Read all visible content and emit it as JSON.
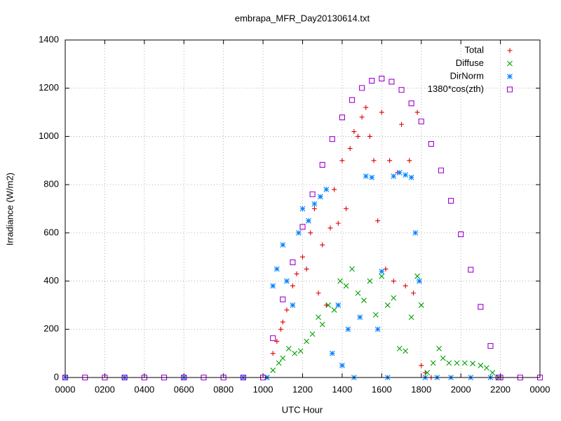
{
  "chart_data": {
    "type": "scatter",
    "title": "embrapa_MFR_Day20130614.txt",
    "x_label": "UTC Hour",
    "y_label": "Irradiance (W/m2)",
    "xlim": [
      0,
      24
    ],
    "ylim": [
      0,
      1400
    ],
    "xticks": [
      {
        "value": 0,
        "label": "0000"
      },
      {
        "value": 2,
        "label": "0200"
      },
      {
        "value": 4,
        "label": "0400"
      },
      {
        "value": 6,
        "label": "0600"
      },
      {
        "value": 8,
        "label": "0800"
      },
      {
        "value": 10,
        "label": "1000"
      },
      {
        "value": 12,
        "label": "1200"
      },
      {
        "value": 14,
        "label": "1400"
      },
      {
        "value": 16,
        "label": "1600"
      },
      {
        "value": 18,
        "label": "1800"
      },
      {
        "value": 20,
        "label": "2000"
      },
      {
        "value": 22,
        "label": "2200"
      },
      {
        "value": 24,
        "label": "0000"
      }
    ],
    "yticks": [
      0,
      200,
      400,
      600,
      800,
      1000,
      1200,
      1400
    ],
    "grid": true,
    "legend": "top-right",
    "series": [
      {
        "name": "Total",
        "color": "#e00000",
        "marker": "plus",
        "x": [
          10.5,
          10.7,
          10.9,
          11.0,
          11.2,
          11.5,
          11.7,
          12.0,
          12.2,
          12.4,
          12.6,
          12.8,
          13.0,
          13.2,
          13.4,
          13.6,
          13.8,
          14.0,
          14.2,
          14.4,
          14.6,
          14.8,
          15.0,
          15.2,
          15.4,
          15.6,
          15.8,
          16.0,
          16.2,
          16.4,
          16.6,
          16.8,
          17.0,
          17.2,
          17.4,
          17.6,
          17.8,
          18.0,
          18.2,
          18.5
        ],
        "values": [
          100,
          150,
          200,
          230,
          280,
          380,
          430,
          500,
          450,
          600,
          700,
          350,
          550,
          300,
          620,
          780,
          640,
          900,
          700,
          950,
          1020,
          1000,
          1080,
          1120,
          1000,
          900,
          650,
          1100,
          450,
          900,
          400,
          850,
          1050,
          380,
          900,
          350,
          1100,
          50,
          20,
          0
        ]
      },
      {
        "name": "Diffuse",
        "color": "#00a000",
        "marker": "cross",
        "x": [
          10.2,
          10.5,
          10.8,
          11.0,
          11.3,
          11.6,
          11.9,
          12.2,
          12.5,
          12.8,
          13.0,
          13.3,
          13.6,
          13.9,
          14.2,
          14.5,
          14.8,
          15.1,
          15.4,
          15.7,
          16.0,
          16.3,
          16.6,
          16.9,
          17.2,
          17.5,
          17.8,
          18.0,
          18.3,
          18.6,
          18.9,
          19.1,
          19.4,
          19.8,
          20.2,
          20.6,
          21.0,
          21.3,
          21.6,
          21.9
        ],
        "values": [
          0,
          30,
          60,
          80,
          120,
          100,
          110,
          150,
          180,
          250,
          220,
          300,
          280,
          400,
          380,
          450,
          350,
          320,
          400,
          260,
          420,
          300,
          330,
          120,
          110,
          250,
          420,
          300,
          20,
          60,
          120,
          80,
          60,
          60,
          60,
          58,
          50,
          40,
          20,
          0
        ]
      },
      {
        "name": "DirNorm",
        "color": "#0080ff",
        "marker": "star",
        "x": [
          0,
          3,
          6,
          9,
          10.2,
          10.5,
          10.7,
          11.0,
          11.2,
          11.5,
          11.8,
          12.0,
          12.3,
          12.6,
          12.9,
          13.2,
          13.5,
          13.8,
          14.0,
          14.3,
          14.6,
          14.9,
          15.2,
          15.5,
          15.8,
          16.0,
          16.3,
          16.6,
          16.9,
          17.2,
          17.5,
          17.7,
          17.9,
          18.2,
          18.8,
          19.5,
          20.5,
          21.5
        ],
        "values": [
          0,
          0,
          0,
          0,
          0,
          380,
          450,
          550,
          400,
          300,
          600,
          700,
          650,
          720,
          750,
          780,
          100,
          300,
          50,
          200,
          0,
          250,
          835,
          830,
          200,
          440,
          0,
          835,
          850,
          840,
          830,
          600,
          400,
          0,
          0,
          0,
          0,
          0
        ]
      },
      {
        "name": "1380*cos(zth)",
        "color": "#a000d0",
        "marker": "square",
        "x": [
          0,
          1,
          2,
          3,
          4,
          5,
          6,
          7,
          8,
          9,
          10,
          10.5,
          11,
          11.5,
          12,
          12.5,
          13,
          13.5,
          14,
          14.5,
          15,
          15.5,
          16,
          16.5,
          17,
          17.5,
          18,
          18.5,
          19,
          19.5,
          20,
          20.5,
          21,
          21.5,
          21.9,
          22,
          23,
          24
        ],
        "values": [
          0,
          0,
          0,
          0,
          0,
          0,
          0,
          0,
          0,
          0,
          0,
          163,
          324,
          478,
          625,
          760,
          882,
          989,
          1079,
          1151,
          1201,
          1231,
          1240,
          1227,
          1193,
          1137,
          1062,
          969,
          859,
          733,
          594,
          447,
          293,
          131,
          0,
          0,
          0,
          0
        ]
      }
    ]
  }
}
